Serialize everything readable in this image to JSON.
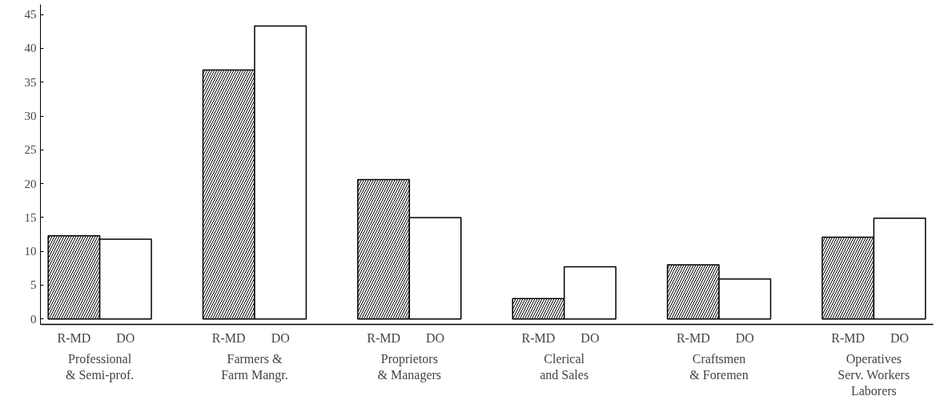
{
  "chart_data": {
    "type": "bar",
    "categories": [
      "Professional\n& Semi-prof.",
      "Farmers &\nFarm Mangr.",
      "Proprietors\n& Managers",
      "Clerical\nand Sales",
      "Craftsmen\n& Foremen",
      "Operatives\nServ. Workers\nLaborers"
    ],
    "series": [
      {
        "name": "R-MD",
        "color": "#000000",
        "values": [
          12.3,
          36.8,
          20.6,
          3,
          8,
          12.1
        ]
      },
      {
        "name": "DO",
        "color": "#ffffff",
        "values": [
          11.8,
          43.3,
          15,
          7.7,
          5.9,
          14.9
        ]
      }
    ],
    "ylim": [
      -0.8,
      46.5
    ],
    "yticks": [
      0,
      5,
      10,
      15,
      20,
      25,
      30,
      35,
      40,
      45
    ],
    "grid": false,
    "legend": false
  }
}
